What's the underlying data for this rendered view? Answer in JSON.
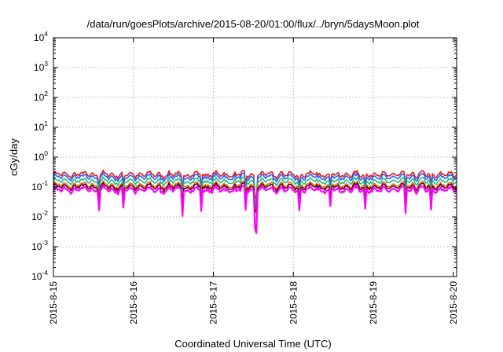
{
  "chart_data": {
    "type": "line",
    "title": "/data/run/goesPlots/archive/2015-08-20/01:00/flux/../bryn/5daysMoon.plot",
    "xlabel": "Coordinated Universal Time (UTC)",
    "ylabel": "cGy/day",
    "y_scale": "log",
    "ylim": [
      0.0001,
      10000
    ],
    "y_ticks": [
      {
        "base": "10",
        "exp": "4",
        "value": 10000
      },
      {
        "base": "10",
        "exp": "3",
        "value": 1000
      },
      {
        "base": "10",
        "exp": "2",
        "value": 100
      },
      {
        "base": "10",
        "exp": "1",
        "value": 10
      },
      {
        "base": "10",
        "exp": "0",
        "value": 1
      },
      {
        "base": "10",
        "exp": "-1",
        "value": 0.1
      },
      {
        "base": "10",
        "exp": "-2",
        "value": 0.01
      },
      {
        "base": "10",
        "exp": "-3",
        "value": 0.001
      },
      {
        "base": "10",
        "exp": "-4",
        "value": 0.0001
      }
    ],
    "xlim": [
      "2015-08-15T00:00",
      "2015-08-20T01:00"
    ],
    "x_ticks": [
      {
        "label": "2015-8-15",
        "date": "2015-08-15T00:00"
      },
      {
        "label": "2015-8-16",
        "date": "2015-08-16T00:00"
      },
      {
        "label": "2015-8-17",
        "date": "2015-08-17T00:00"
      },
      {
        "label": "2015-8-18",
        "date": "2015-08-18T00:00"
      },
      {
        "label": "2015-8-19",
        "date": "2015-08-19T00:00"
      },
      {
        "label": "2015-8-20",
        "date": "2015-08-20T00:00"
      }
    ],
    "grid": true,
    "series": [
      {
        "color": "#e41a1c",
        "level": 0.26,
        "dip": 1.5
      },
      {
        "color": "#1e64ff",
        "level": 0.21,
        "dip": 1.7
      },
      {
        "color": "#20c080",
        "level": 0.155,
        "dip": 1.6
      },
      {
        "color": "#e07020",
        "level": 0.115,
        "dip": 1.6
      },
      {
        "color": "#600020",
        "level": 0.1,
        "dip": 1.6
      },
      {
        "color": "#ff00ff",
        "level": 0.08,
        "dip": 2.8
      }
    ]
  }
}
